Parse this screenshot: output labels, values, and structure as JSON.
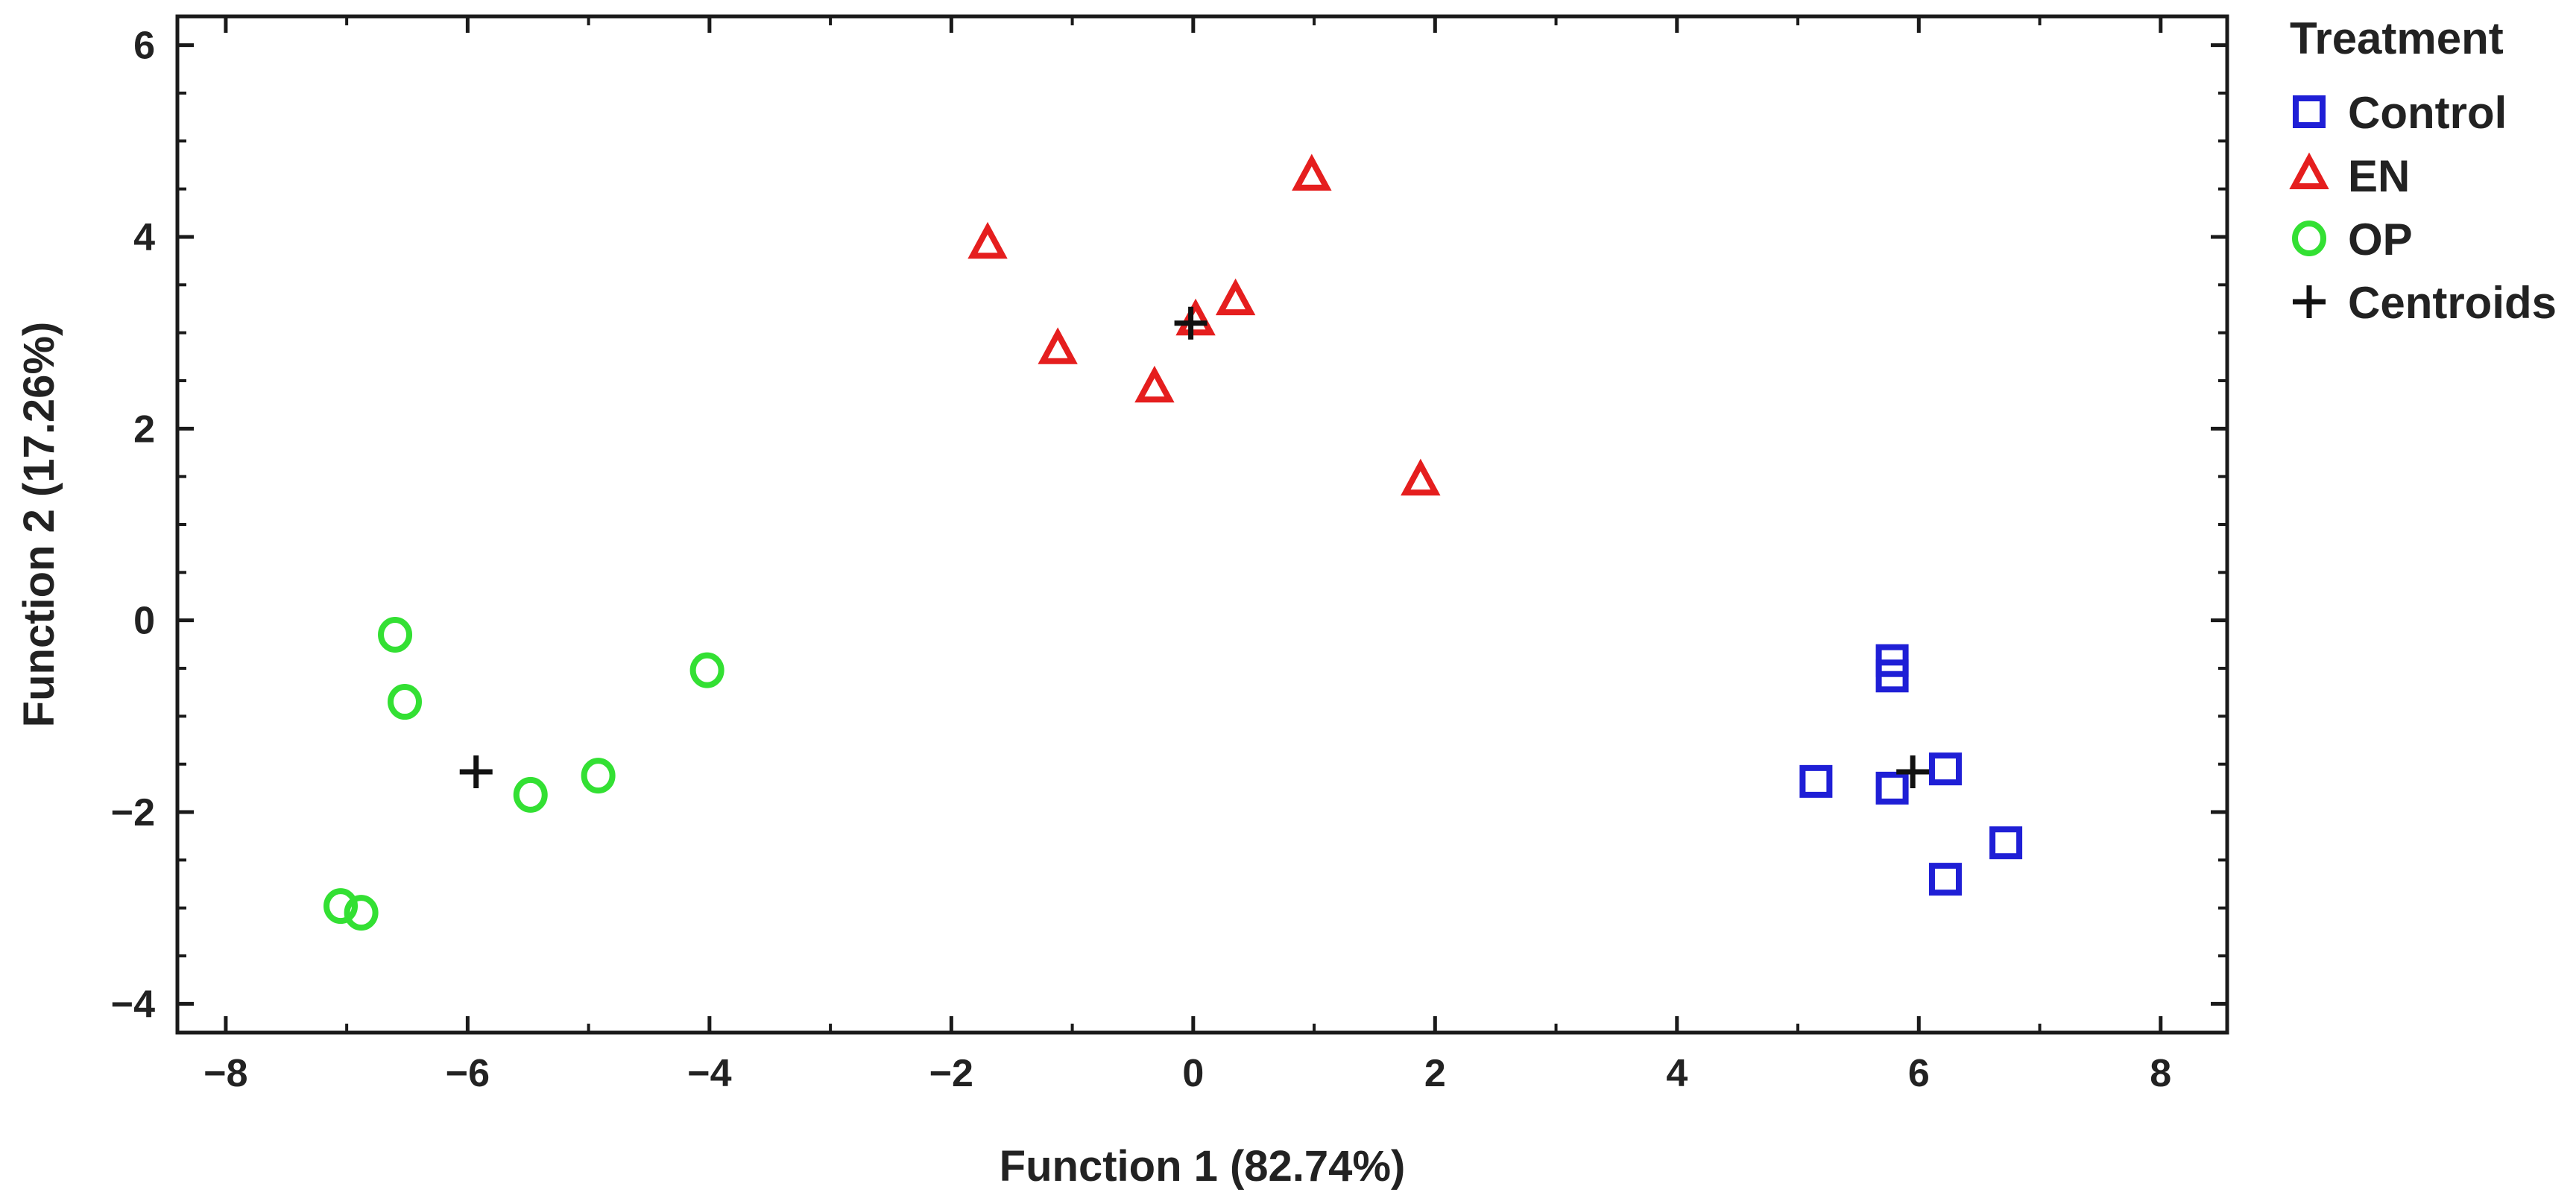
{
  "chart_data": {
    "type": "scatter",
    "title": "",
    "xlabel": "Function 1 (82.74%)",
    "ylabel": "Function 2 (17.26%)",
    "xlim": [
      -8.4,
      8.55
    ],
    "ylim": [
      -4.3,
      6.3
    ],
    "xticks": [
      -8,
      -6,
      -4,
      -2,
      0,
      2,
      4,
      6,
      8
    ],
    "yticks": [
      -4,
      -2,
      0,
      2,
      4,
      6
    ],
    "xtick_labels": [
      "−8",
      "−6",
      "−4",
      "−2",
      "0",
      "2",
      "4",
      "6",
      "8"
    ],
    "ytick_labels": [
      "−4",
      "−2",
      "0",
      "2",
      "4",
      "6"
    ],
    "legend": {
      "title": "Treatment",
      "position": "right"
    },
    "series": [
      {
        "name": "Control",
        "marker": "square",
        "color": "#1f1fd6",
        "points": [
          [
            5.15,
            -1.68
          ],
          [
            5.78,
            -0.42
          ],
          [
            5.78,
            -0.58
          ],
          [
            5.78,
            -1.75
          ],
          [
            6.22,
            -1.55
          ],
          [
            6.22,
            -2.7
          ],
          [
            6.72,
            -2.32
          ]
        ]
      },
      {
        "name": "EN",
        "marker": "triangle",
        "color": "#e51e1e",
        "points": [
          [
            -1.7,
            3.92
          ],
          [
            -1.12,
            2.82
          ],
          [
            -0.32,
            2.42
          ],
          [
            0.02,
            3.12
          ],
          [
            0.35,
            3.33
          ],
          [
            0.98,
            4.63
          ],
          [
            1.88,
            1.45
          ]
        ]
      },
      {
        "name": "OP",
        "marker": "circle",
        "color": "#33e033",
        "points": [
          [
            -7.05,
            -2.98
          ],
          [
            -6.88,
            -3.05
          ],
          [
            -6.6,
            -0.15
          ],
          [
            -6.52,
            -0.85
          ],
          [
            -5.48,
            -1.82
          ],
          [
            -4.92,
            -1.62
          ],
          [
            -4.02,
            -0.52
          ]
        ]
      },
      {
        "name": "Centroids",
        "marker": "plus",
        "color": "#111111",
        "points": [
          [
            -5.93,
            -1.58
          ],
          [
            -0.02,
            3.1
          ],
          [
            5.95,
            -1.58
          ]
        ]
      }
    ]
  }
}
